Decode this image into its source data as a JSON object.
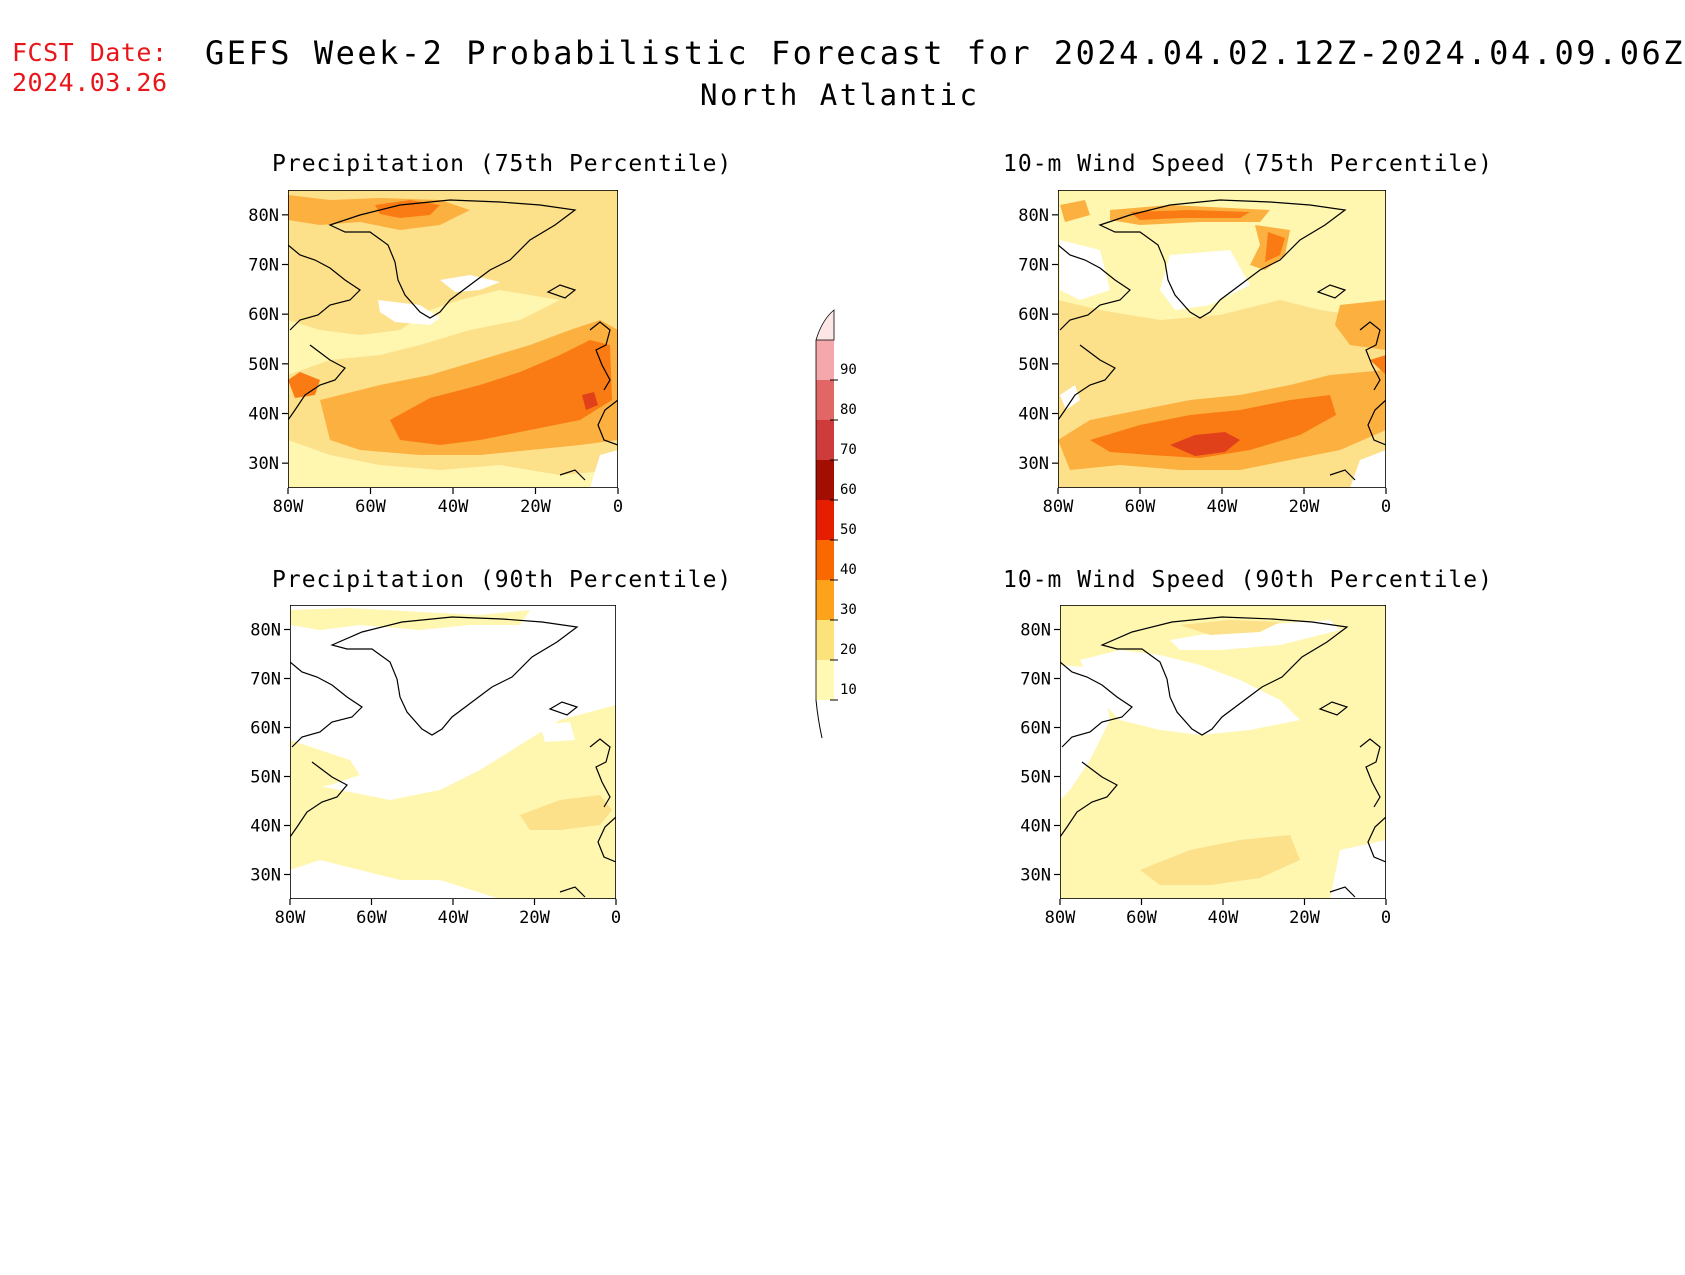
{
  "header": {
    "fcst_date_label": "FCST Date:",
    "fcst_date_value": "2024.03.26",
    "title": "GEFS Week-2 Probabilistic Forecast for 2024.04.02.12Z-2024.04.09.06Z",
    "subtitle": "North Atlantic"
  },
  "panels": [
    {
      "id": "precip75",
      "title": "Precipitation (75th Percentile)"
    },
    {
      "id": "wind75",
      "title": "10-m Wind Speed (75th Percentile)"
    },
    {
      "id": "precip90",
      "title": "Precipitation (90th Percentile)"
    },
    {
      "id": "wind90",
      "title": "10-m Wind Speed (90th Percentile)"
    }
  ],
  "axes": {
    "lat_labels": [
      "80N",
      "70N",
      "60N",
      "50N",
      "40N",
      "30N"
    ],
    "lon_labels": [
      "80W",
      "60W",
      "40W",
      "20W",
      "0"
    ]
  },
  "colorbar": {
    "levels": [
      "10",
      "20",
      "30",
      "40",
      "50",
      "60",
      "70",
      "80",
      "90"
    ],
    "colors": [
      "#fff9b3",
      "#fbe27a",
      "#fca31b",
      "#fa6800",
      "#e51e02",
      "#a20e02",
      "#cd3b3b",
      "#e36666",
      "#f4a8ab",
      "#fde6e6"
    ]
  },
  "colors": {
    "fcst_date": "#e8161b",
    "p_light": "#fff6b0",
    "p_mid": "#fce08a",
    "p_orange": "#fcb040",
    "p_deep": "#fa7b14",
    "p_red": "#e0401a"
  }
}
